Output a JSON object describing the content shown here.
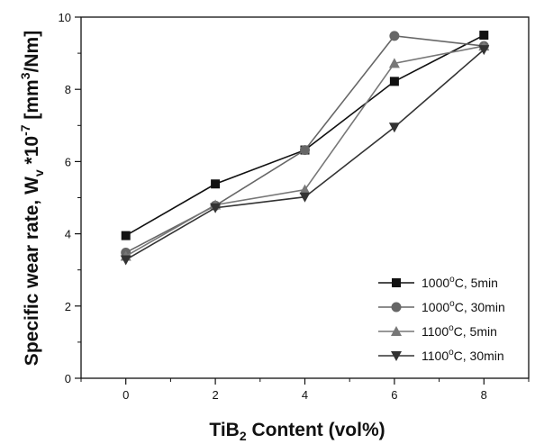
{
  "chart_data": {
    "type": "line",
    "xlabel": {
      "main": "TiB",
      "sub": "2",
      "rest": " Content (vol%)"
    },
    "ylabel": {
      "main": "Specific wear rate, W",
      "sub": "v",
      "mid": " *10",
      "sup": "-7",
      "rest": " [mm",
      "sup2": "3",
      "end": "/Nm]"
    },
    "x": [
      0,
      2,
      4,
      6,
      8
    ],
    "xlim": [
      -1,
      9
    ],
    "ylim": [
      0,
      10
    ],
    "xticks": [
      "0",
      "2",
      "4",
      "6",
      "8"
    ],
    "yticks": [
      "0",
      "2",
      "4",
      "6",
      "8",
      "10"
    ],
    "legend_position": "bottom-right",
    "series": [
      {
        "name_pre": "1000",
        "name_post": "C, 5min",
        "marker": "square",
        "color": "#111111",
        "values": [
          3.95,
          5.38,
          6.32,
          8.22,
          9.5
        ]
      },
      {
        "name_pre": "1000",
        "name_post": "C, 30min",
        "marker": "circle",
        "color": "#666666",
        "values": [
          3.48,
          4.78,
          6.32,
          9.48,
          9.2
        ]
      },
      {
        "name_pre": "1100",
        "name_post": "C, 5min",
        "marker": "triangle-up",
        "color": "#777777",
        "values": [
          3.38,
          4.8,
          5.22,
          8.72,
          9.2
        ]
      },
      {
        "name_pre": "1100",
        "name_post": "C, 30min",
        "marker": "triangle-down",
        "color": "#333333",
        "values": [
          3.28,
          4.72,
          5.02,
          6.95,
          9.1
        ]
      }
    ],
    "degree_symbol": "o"
  }
}
